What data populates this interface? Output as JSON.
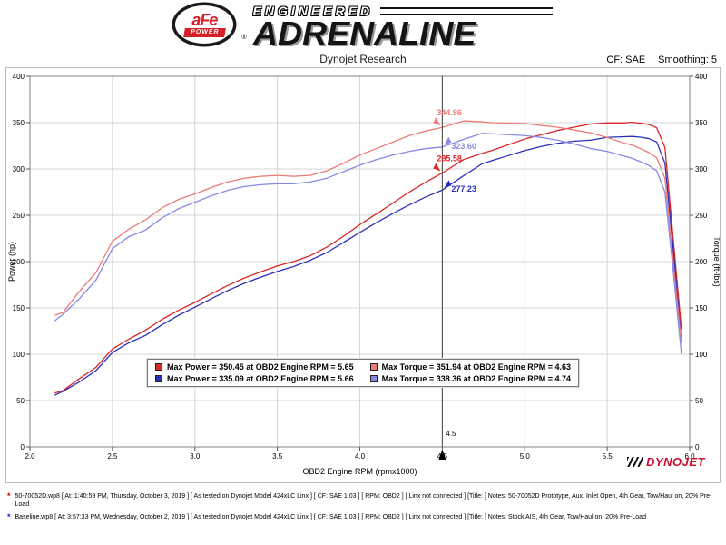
{
  "header": {
    "logo": {
      "afe": "aFe",
      "power": "POWER",
      "reg": "®",
      "engineered": "ENGINEERED",
      "adrenaline": "ADRENALINE"
    },
    "subtitle": "Dynojet Research",
    "cf_label": "CF: SAE",
    "smoothing_label": "Smoothing: 5"
  },
  "chart_data": {
    "type": "line",
    "xlabel": "OBD2 Engine RPM (rpmx1000)",
    "ylabel_left": "Power (hp)",
    "ylabel_right": "Torque (ft-lbs)",
    "xlim": [
      2.0,
      6.0
    ],
    "ylim": [
      0,
      400
    ],
    "x_ticks": [
      2.0,
      2.5,
      3.0,
      3.5,
      4.0,
      4.5,
      5.0,
      5.5,
      6.0
    ],
    "y_ticks": [
      0,
      50,
      100,
      150,
      200,
      250,
      300,
      350,
      400
    ],
    "grid": true,
    "legend_position": "bottom-center-inside",
    "watermark": "DYNOJET",
    "colors": {
      "power_modified": "#d92626",
      "power_baseline": "#2b2fbe",
      "torque_modified": "#ec7a76",
      "torque_baseline": "#8689e6",
      "cursor_line": "#444444",
      "grid": "#d4d4d4"
    },
    "cursor": {
      "x": 4.5,
      "label": "4.5",
      "values": [
        {
          "label": "344.86",
          "value": 344.86,
          "color": "#ec7a76",
          "side": "left"
        },
        {
          "label": "323.60",
          "value": 323.6,
          "color": "#8689e6",
          "side": "right"
        },
        {
          "label": "295.58",
          "value": 295.58,
          "color": "#d92626",
          "side": "left"
        },
        {
          "label": "277.23",
          "value": 277.23,
          "color": "#2b2fbe",
          "side": "right"
        }
      ]
    },
    "x": [
      2.15,
      2.2,
      2.3,
      2.4,
      2.5,
      2.6,
      2.7,
      2.8,
      2.9,
      3.0,
      3.1,
      3.2,
      3.3,
      3.4,
      3.5,
      3.6,
      3.7,
      3.8,
      3.9,
      4.0,
      4.1,
      4.2,
      4.3,
      4.4,
      4.5,
      4.63,
      4.74,
      4.8,
      4.9,
      5.0,
      5.1,
      5.2,
      5.3,
      5.4,
      5.5,
      5.6,
      5.65,
      5.7,
      5.75,
      5.8,
      5.85,
      5.9,
      5.95
    ],
    "series": [
      {
        "name": "Power 50-70052D",
        "color": "#d92626",
        "width": 1.3,
        "values": [
          58.1,
          60.7,
          73.6,
          85.9,
          105.7,
          116.3,
          125.9,
          137.5,
          147.4,
          155.9,
          165.3,
          174.3,
          182.2,
          189.0,
          195.3,
          200.1,
          206.4,
          215.6,
          227.2,
          239.9,
          251.4,
          263.1,
          275.1,
          285.7,
          295.6,
          310.2,
          316.8,
          319.9,
          326.1,
          332.3,
          336.9,
          341.6,
          345.1,
          348.5,
          349.7,
          349.7,
          350.5,
          349.4,
          348.1,
          344.5,
          323.0,
          224.7,
          126.9
        ]
      },
      {
        "name": "Power Baseline",
        "color": "#2b2fbe",
        "width": 1.3,
        "values": [
          55.7,
          59.9,
          70.1,
          82.3,
          101.9,
          112.4,
          120.3,
          131.7,
          141.9,
          150.8,
          160.0,
          168.8,
          176.6,
          183.2,
          189.3,
          194.7,
          201.5,
          209.8,
          220.5,
          231.5,
          242.0,
          251.9,
          261.2,
          269.8,
          277.2,
          292.7,
          305.4,
          308.9,
          314.4,
          319.9,
          324.3,
          327.7,
          330.0,
          331.1,
          334.1,
          334.8,
          335.1,
          334.3,
          332.9,
          329.1,
          306.3,
          213.4,
          113.3
        ]
      },
      {
        "name": "Torque 50-70052D",
        "color": "#ec7a76",
        "width": 1.3,
        "values": [
          142,
          145,
          168,
          188,
          222,
          235,
          245,
          258,
          267,
          273,
          280,
          286,
          290,
          292,
          293,
          292,
          293,
          298,
          306,
          315,
          322,
          329,
          336,
          341,
          344.9,
          351.9,
          351,
          350,
          349.5,
          349,
          347,
          345,
          342,
          339,
          334,
          328,
          325.8,
          322,
          318,
          312,
          290,
          200,
          112
        ]
      },
      {
        "name": "Torque Baseline",
        "color": "#8689e6",
        "width": 1.3,
        "values": [
          136,
          143,
          160,
          180,
          214,
          227,
          234,
          247,
          257,
          264,
          271,
          277,
          281,
          283,
          284,
          284,
          286,
          290,
          297,
          304,
          310,
          315,
          319,
          322,
          323.6,
          332,
          338.4,
          338,
          337,
          336,
          334,
          331,
          327,
          322,
          319,
          314,
          311.5,
          308,
          304,
          298,
          275,
          190,
          100
        ]
      }
    ],
    "legend": [
      {
        "color": "#d92626",
        "text": "Max Power = 350.45 at OBD2 Engine RPM = 5.65"
      },
      {
        "color": "#ec7a76",
        "text": "Max Torque = 351.94 at OBD2 Engine RPM = 4.63"
      },
      {
        "color": "#2b2fbe",
        "text": "Max Power = 335.09 at OBD2 Engine RPM = 5.66"
      },
      {
        "color": "#8689e6",
        "text": "Max Torque = 338.36 at OBD2 Engine RPM = 4.74"
      }
    ]
  },
  "footnotes": [
    {
      "marker": "*",
      "color": "#cc0000",
      "text": "50-70052D.wp8 [ At: 1:40:59 PM, Thursday, October 3, 2019 ] [ As tested on Dynojet Model 424xLC Linx ] [ CF: SAE 1.03 ] [ RPM: OBD2 ] [ Linx not connected ] [Title: ]  Notes: 50-70052D Prototype, Aux. Inlet Open, 4th Gear, Tow/Haul on, 20% Pre-Load"
    },
    {
      "marker": "*",
      "color": "#2222cc",
      "text": "Baseline.wp8 [ At: 3:57:33 PM, Wednesday, October 2, 2019 ] [ As tested on Dynojet Model 424xLC Linx ] [ CF: SAE 1.03 ] [ RPM: OBD2 ] [ Linx not connected ] [Title: ]  Notes: Stock AIS, 4th Gear, Tow/Haul on, 20% Pre-Load"
    }
  ]
}
